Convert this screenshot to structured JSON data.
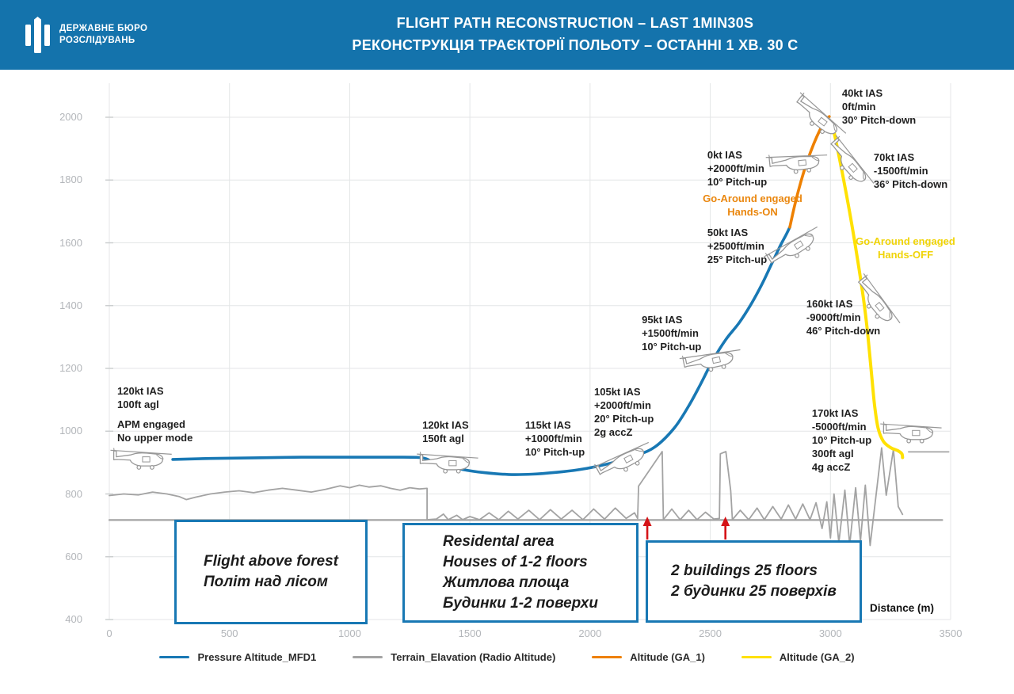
{
  "header": {
    "background_color": "#1473ac",
    "agency_name_line1": "ДЕРЖАВНЕ БЮРО",
    "agency_name_line2": "РОЗСЛІДУВАНЬ",
    "title_en": "FLIGHT PATH RECONSTRUCTION – LAST 1MIN30S",
    "title_uk": "РЕКОНСТРУКЦІЯ ТРАЄКТОРІЇ ПОЛЬОТУ – ОСТАННІ 1 ХВ. 30 С"
  },
  "chart_data": {
    "type": "line",
    "xlabel": "Distance (m)",
    "xlim": [
      0,
      3500
    ],
    "ylim": [
      400,
      2100
    ],
    "x_ticks": [
      0,
      500,
      1000,
      1500,
      2000,
      2500,
      3000,
      3500
    ],
    "y_ticks": [
      400,
      600,
      800,
      1000,
      1200,
      1400,
      1600,
      1800,
      2000
    ],
    "grid": true,
    "legend_position": "bottom",
    "series": [
      {
        "name": "Pressure Altitude_MFD1",
        "color": "#1878b4",
        "points": [
          [
            264,
            910
          ],
          [
            420,
            913
          ],
          [
            600,
            915
          ],
          [
            800,
            917
          ],
          [
            1000,
            917
          ],
          [
            1150,
            917
          ],
          [
            1292,
            916
          ],
          [
            1340,
            905
          ],
          [
            1400,
            892
          ],
          [
            1470,
            878
          ],
          [
            1560,
            868
          ],
          [
            1660,
            862
          ],
          [
            1760,
            863
          ],
          [
            1860,
            869
          ],
          [
            1950,
            877
          ],
          [
            2030,
            888
          ],
          [
            2110,
            903
          ],
          [
            2190,
            922
          ],
          [
            2270,
            950
          ],
          [
            2350,
            1010
          ],
          [
            2410,
            1080
          ],
          [
            2460,
            1150
          ],
          [
            2510,
            1225
          ],
          [
            2565,
            1292
          ],
          [
            2620,
            1345
          ],
          [
            2670,
            1405
          ],
          [
            2715,
            1468
          ],
          [
            2755,
            1532
          ],
          [
            2792,
            1592
          ],
          [
            2815,
            1625
          ],
          [
            2831,
            1650
          ]
        ]
      },
      {
        "name": "Terrain_Elavation (Radio Altitude)",
        "color": "#a3a3a3",
        "segments": [
          [
            [
              0,
              795
            ],
            [
              60,
              800
            ],
            [
              120,
              797
            ],
            [
              180,
              806
            ],
            [
              240,
              800
            ],
            [
              290,
              792
            ],
            [
              320,
              782
            ],
            [
              360,
              790
            ],
            [
              420,
              800
            ],
            [
              480,
              806
            ],
            [
              540,
              810
            ],
            [
              600,
              804
            ],
            [
              660,
              812
            ],
            [
              720,
              818
            ],
            [
              780,
              812
            ],
            [
              840,
              806
            ],
            [
              900,
              815
            ],
            [
              960,
              826
            ],
            [
              1000,
              820
            ],
            [
              1040,
              828
            ],
            [
              1080,
              822
            ],
            [
              1130,
              826
            ],
            [
              1170,
              818
            ],
            [
              1210,
              812
            ],
            [
              1250,
              820
            ],
            [
              1290,
              816
            ],
            [
              1322,
              818
            ],
            [
              1322,
              718
            ],
            [
              1360,
              720
            ],
            [
              1390,
              736
            ],
            [
              1410,
              718
            ],
            [
              1445,
              732
            ],
            [
              1470,
              718
            ],
            [
              1500,
              728
            ],
            [
              1540,
              718
            ],
            [
              1580,
              740
            ],
            [
              1620,
              718
            ],
            [
              1660,
              745
            ],
            [
              1700,
              720
            ],
            [
              1745,
              748
            ],
            [
              1790,
              718
            ],
            [
              1835,
              750
            ],
            [
              1880,
              720
            ],
            [
              1925,
              748
            ],
            [
              1970,
              718
            ],
            [
              2015,
              752
            ],
            [
              2060,
              720
            ],
            [
              2105,
              755
            ],
            [
              2150,
              722
            ],
            [
              2185,
              740
            ],
            [
              2198,
              722
            ],
            [
              2202,
              825
            ],
            [
              2300,
              935
            ],
            [
              2305,
              718
            ],
            [
              2340,
              752
            ],
            [
              2375,
              718
            ],
            [
              2410,
              748
            ],
            [
              2445,
              718
            ],
            [
              2480,
              742
            ],
            [
              2515,
              720
            ],
            [
              2538,
              722
            ],
            [
              2542,
              928
            ],
            [
              2565,
              935
            ],
            [
              2585,
              810
            ],
            [
              2592,
              718
            ],
            [
              2625,
              748
            ],
            [
              2660,
              718
            ],
            [
              2695,
              755
            ],
            [
              2725,
              718
            ],
            [
              2760,
              760
            ],
            [
              2795,
              720
            ],
            [
              2825,
              765
            ],
            [
              2855,
              720
            ],
            [
              2885,
              768
            ],
            [
              2915,
              718
            ],
            [
              2940,
              772
            ],
            [
              2965,
              690
            ],
            [
              2985,
              775
            ],
            [
              3000,
              660
            ],
            [
              3015,
              800
            ],
            [
              3035,
              645
            ],
            [
              3060,
              812
            ],
            [
              3080,
              638
            ],
            [
              3105,
              820
            ],
            [
              3125,
              650
            ],
            [
              3145,
              828
            ],
            [
              3165,
              636
            ],
            [
              3213,
              947
            ],
            [
              3232,
              796
            ],
            [
              3262,
              942
            ],
            [
              3282,
              760
            ],
            [
              3300,
              735
            ]
          ],
          [
            [
              0,
              717
            ],
            [
              3465,
              717
            ]
          ],
          [
            [
              3325,
              934
            ],
            [
              3492,
              934
            ]
          ]
        ]
      },
      {
        "name": "Altitude (GA_1)",
        "color": "#ee8000",
        "points": [
          [
            2831,
            1650
          ],
          [
            2852,
            1722
          ],
          [
            2876,
            1792
          ],
          [
            2902,
            1856
          ],
          [
            2930,
            1914
          ],
          [
            2958,
            1962
          ],
          [
            2980,
            1992
          ],
          [
            2995,
            2002
          ]
        ]
      },
      {
        "name": "Altitude (GA_2)",
        "color": "#ffe103",
        "points": [
          [
            3008,
            1978
          ],
          [
            3028,
            1905
          ],
          [
            3048,
            1828
          ],
          [
            3068,
            1748
          ],
          [
            3088,
            1662
          ],
          [
            3105,
            1585
          ],
          [
            3122,
            1502
          ],
          [
            3138,
            1418
          ],
          [
            3152,
            1332
          ],
          [
            3163,
            1248
          ],
          [
            3173,
            1165
          ],
          [
            3184,
            1080
          ],
          [
            3198,
            1010
          ],
          [
            3220,
            968
          ],
          [
            3250,
            948
          ],
          [
            3280,
            938
          ],
          [
            3297,
            928
          ],
          [
            3300,
            916
          ]
        ]
      }
    ],
    "helicopters": [
      {
        "x": 132,
        "alt": 909,
        "rot": 0
      },
      {
        "x": 1407,
        "alt": 897,
        "rot": 0
      },
      {
        "x": 2142,
        "alt": 903,
        "rot": -28
      },
      {
        "x": 2505,
        "alt": 1222,
        "rot": -12
      },
      {
        "x": 2851,
        "alt": 1583,
        "rot": -33
      },
      {
        "x": 2862,
        "alt": 1852,
        "rot": -6
      },
      {
        "x": 2950,
        "alt": 1995,
        "rot": 38
      },
      {
        "x": 3078,
        "alt": 1850,
        "rot": 48
      },
      {
        "x": 3190,
        "alt": 1408,
        "rot": 50
      },
      {
        "x": 3335,
        "alt": 993,
        "rot": 0
      }
    ],
    "annotations": [
      {
        "x": 33,
        "alt": 1150,
        "align": "left",
        "color": "#1f1f1f",
        "lines": [
          "120kt IAS",
          "100ft agl",
          "",
          "APM engaged",
          "No upper mode"
        ]
      },
      {
        "x": 1302,
        "alt": 1042,
        "align": "left",
        "color": "#1f1f1f",
        "lines": [
          "120kt IAS",
          "150ft agl"
        ]
      },
      {
        "x": 1730,
        "alt": 1042,
        "align": "left",
        "color": "#1f1f1f",
        "lines": [
          "115kt IAS",
          "+1000ft/min",
          "10° Pitch-up"
        ]
      },
      {
        "x": 2017,
        "alt": 1146,
        "align": "left",
        "color": "#1f1f1f",
        "lines": [
          "105kt IAS",
          "+2000ft/min",
          "20° Pitch-up",
          "2g accZ"
        ]
      },
      {
        "x": 2215,
        "alt": 1376,
        "align": "left",
        "color": "#1f1f1f",
        "lines": [
          "95kt IAS",
          "+1500ft/min",
          "10° Pitch-up"
        ]
      },
      {
        "x": 2488,
        "alt": 1902,
        "align": "left",
        "color": "#1f1f1f",
        "lines": [
          "0kt IAS",
          "+2000ft/min",
          "10° Pitch-up"
        ]
      },
      {
        "x": 2676,
        "alt": 1762,
        "align": "center",
        "color": "#ea870f",
        "name": "go-around-hands-on-label",
        "lines": [
          "Go-Around engaged",
          "Hands-ON"
        ]
      },
      {
        "x": 2488,
        "alt": 1655,
        "align": "left",
        "color": "#1f1f1f",
        "lines": [
          "50kt IAS",
          "+2500ft/min",
          "25° Pitch-up"
        ]
      },
      {
        "x": 3048,
        "alt": 2098,
        "align": "left",
        "color": "#1f1f1f",
        "lines": [
          "40kt IAS",
          "0ft/min",
          "30° Pitch-down"
        ]
      },
      {
        "x": 3180,
        "alt": 1895,
        "align": "left",
        "color": "#1f1f1f",
        "lines": [
          "70kt IAS",
          "-1500ft/min",
          "36° Pitch-down"
        ]
      },
      {
        "x": 3312,
        "alt": 1627,
        "align": "center",
        "color": "#f0d408",
        "name": "go-around-hands-off-label",
        "lines": [
          "Go-Around engaged",
          "Hands-OFF"
        ]
      },
      {
        "x": 2900,
        "alt": 1426,
        "align": "left",
        "color": "#1f1f1f",
        "lines": [
          "160kt IAS",
          "-9000ft/min",
          "46° Pitch-down"
        ]
      },
      {
        "x": 2923,
        "alt": 1078,
        "align": "left",
        "color": "#1f1f1f",
        "lines": [
          "170kt IAS",
          "-5000ft/min",
          "10° Pitch-up",
          "300ft agl",
          "4g accZ"
        ]
      }
    ],
    "building_markers_x": [
      2238,
      2563
    ],
    "area_boxes": [
      {
        "lines": [
          "Flight above forest",
          "Політ над лісом"
        ]
      },
      {
        "lines": [
          "Residental area",
          "Houses of 1-2 floors",
          "Житлова площа",
          "Будинки 1-2 поверхи"
        ]
      },
      {
        "lines": [
          "2 buildings 25 floors",
          "2 будинки 25 поверхів"
        ]
      }
    ]
  },
  "legend": {
    "items": [
      {
        "label": "Pressure Altitude_MFD1",
        "color": "#1878b4"
      },
      {
        "label": "Terrain_Elavation (Radio Altitude)",
        "color": "#a3a3a3"
      },
      {
        "label": "Altitude (GA_1)",
        "color": "#ee8000"
      },
      {
        "label": "Altitude (GA_2)",
        "color": "#ffe103"
      }
    ]
  }
}
